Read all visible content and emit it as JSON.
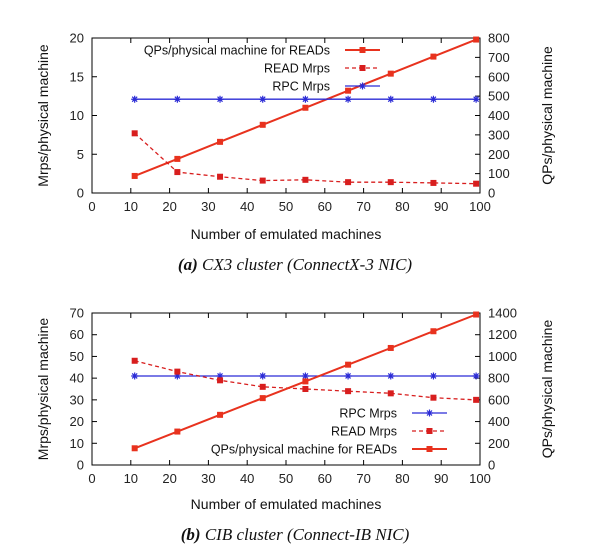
{
  "chart_data": [
    {
      "type": "line",
      "caption_tag": "(a)",
      "caption_text": "CX3 cluster (ConnectX-3 NIC)",
      "xlabel": "Number of emulated machines",
      "ylabel": "Mrps/physical machine",
      "y2label": "QPs/physical machine",
      "xlim": [
        0,
        100
      ],
      "ylim": [
        0,
        20
      ],
      "y2lim": [
        0,
        800
      ],
      "xticks": [
        0,
        10,
        20,
        30,
        40,
        50,
        60,
        70,
        80,
        90,
        100
      ],
      "yticks": [
        0,
        5,
        10,
        15,
        20
      ],
      "y2ticks": [
        0,
        100,
        200,
        300,
        400,
        500,
        600,
        700,
        800
      ],
      "legend_position": "top-left",
      "x": [
        11,
        22,
        33,
        44,
        55,
        66,
        77,
        88,
        99
      ],
      "series": [
        {
          "name": "QPs/physical machine for READs",
          "axis": "right",
          "color": "#e8321e",
          "style": "solid",
          "marker": "square",
          "values": [
            88,
            176,
            264,
            352,
            440,
            528,
            616,
            704,
            792
          ]
        },
        {
          "name": "READ Mrps",
          "axis": "left",
          "color": "#d81e1e",
          "style": "dashed",
          "marker": "square",
          "values": [
            7.7,
            2.7,
            2.1,
            1.6,
            1.7,
            1.4,
            1.4,
            1.3,
            1.2
          ]
        },
        {
          "name": "RPC Mrps",
          "axis": "left",
          "color": "#2b2bd6",
          "style": "solid",
          "marker": "cross",
          "values": [
            12.1,
            12.1,
            12.1,
            12.1,
            12.1,
            12.1,
            12.1,
            12.1,
            12.1
          ]
        }
      ]
    },
    {
      "type": "line",
      "caption_tag": "(b)",
      "caption_text": "CIB cluster (Connect-IB NIC)",
      "xlabel": "Number of emulated machines",
      "ylabel": "Mrps/physical machine",
      "y2label": "QPs/physical machine",
      "xlim": [
        0,
        100
      ],
      "ylim": [
        0,
        70
      ],
      "y2lim": [
        0,
        1400
      ],
      "xticks": [
        0,
        10,
        20,
        30,
        40,
        50,
        60,
        70,
        80,
        90,
        100
      ],
      "yticks": [
        0,
        10,
        20,
        30,
        40,
        50,
        60,
        70
      ],
      "y2ticks": [
        0,
        200,
        400,
        600,
        800,
        1000,
        1200,
        1400
      ],
      "legend_position": "bottom-right",
      "x": [
        11,
        22,
        33,
        44,
        55,
        66,
        77,
        88,
        99
      ],
      "series": [
        {
          "name": "RPC Mrps",
          "axis": "left",
          "color": "#2b2bd6",
          "style": "solid",
          "marker": "cross",
          "values": [
            41,
            41,
            41,
            41,
            41,
            41,
            41,
            41,
            41
          ]
        },
        {
          "name": "READ Mrps",
          "axis": "left",
          "color": "#d81e1e",
          "style": "dashed",
          "marker": "square",
          "values": [
            48,
            43,
            39,
            36,
            35,
            34,
            33,
            31,
            30
          ]
        },
        {
          "name": "QPs/physical machine for READs",
          "axis": "right",
          "color": "#e8321e",
          "style": "solid",
          "marker": "square",
          "values": [
            154,
            308,
            462,
            616,
            770,
            924,
            1078,
            1232,
            1386
          ]
        }
      ]
    }
  ]
}
